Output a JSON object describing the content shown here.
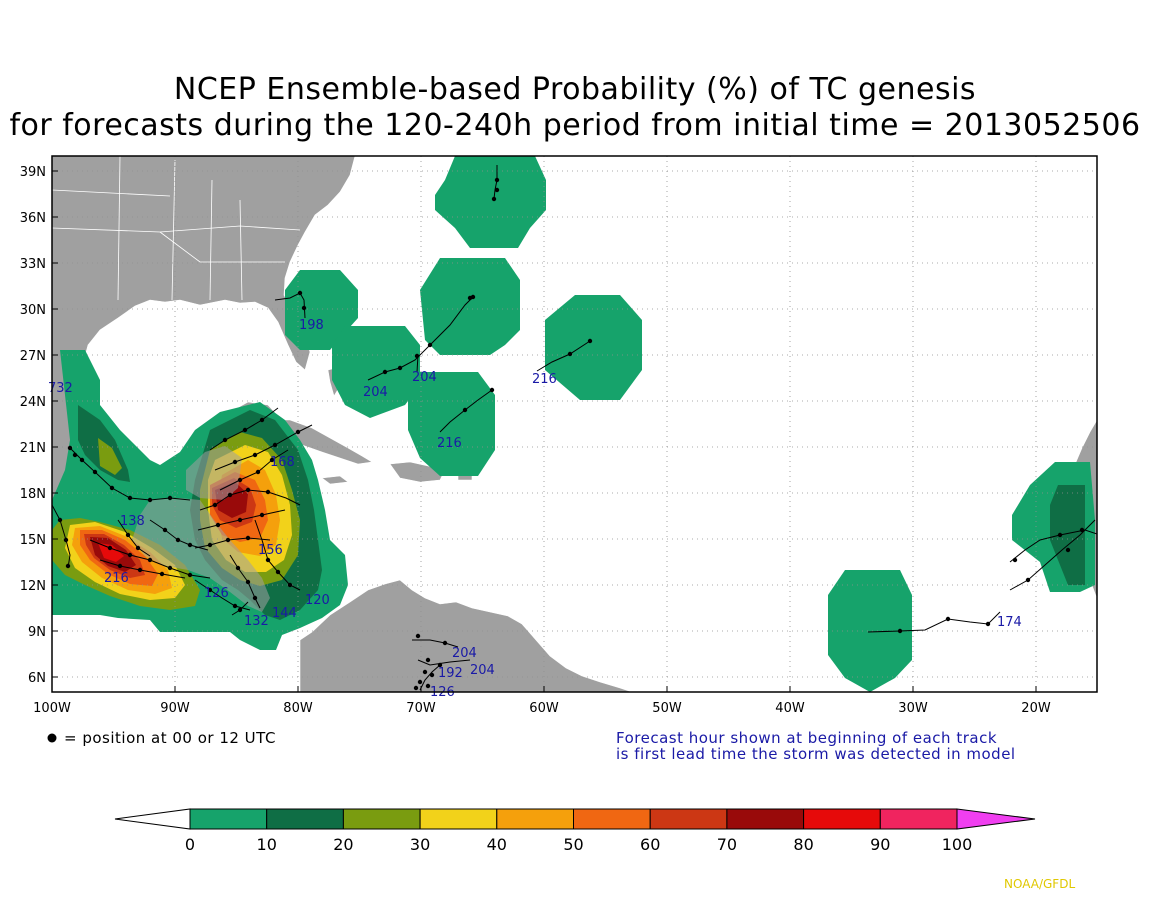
{
  "title": {
    "line1": "NCEP Ensemble-based Probability (%) of TC genesis",
    "line2": "for forecasts during the 120-240h period from initial time = 2013052506"
  },
  "axes": {
    "lat_labels": [
      "39N",
      "36N",
      "33N",
      "30N",
      "27N",
      "24N",
      "21N",
      "18N",
      "15N",
      "12N",
      "9N",
      "6N"
    ],
    "lon_labels": [
      "100W",
      "90W",
      "80W",
      "70W",
      "60W",
      "50W",
      "40W",
      "30W",
      "20W"
    ]
  },
  "notes": {
    "position_legend": "= position at 00 or 12 UTC",
    "forecast_hour_line1": "Forecast hour shown at beginning of each track",
    "forecast_hour_line2": "is first lead time the storm was detected in model",
    "credit": "NOAA/GFDL"
  },
  "colorbar": {
    "labels": [
      "0",
      "10",
      "20",
      "30",
      "40",
      "50",
      "60",
      "70",
      "80",
      "90",
      "100"
    ],
    "colors": [
      "#16a36b",
      "#0f6e45",
      "#7a9c10",
      "#f2d21a",
      "#f5a00c",
      "#f06712",
      "#cc3714",
      "#990a0a",
      "#e60a0a",
      "#f0245f",
      "#f03ff0"
    ]
  },
  "tracks": [
    {
      "label": "198"
    },
    {
      "label": "204"
    },
    {
      "label": "204"
    },
    {
      "label": "216"
    },
    {
      "label": "216"
    },
    {
      "label": "174"
    },
    {
      "label": "120"
    },
    {
      "label": "144"
    },
    {
      "label": "132"
    },
    {
      "label": "204"
    },
    {
      "label": "204"
    },
    {
      "label": "192"
    },
    {
      "label": "126"
    },
    {
      "label": "732"
    },
    {
      "label": "138"
    },
    {
      "label": "216"
    },
    {
      "label": "126"
    },
    {
      "label": "168"
    },
    {
      "label": "156"
    }
  ],
  "map": {
    "land_color": "#a0a0a0",
    "ocean_color": "#ffffff",
    "probability_regions": "green low-probability hexagons over the Atlantic and Gulf; high-probability (up to 80%) core over the western Caribbean and Gulf of Tehuantepec"
  }
}
